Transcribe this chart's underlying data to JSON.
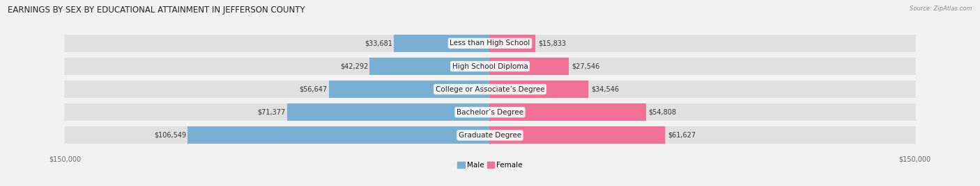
{
  "title": "EARNINGS BY SEX BY EDUCATIONAL ATTAINMENT IN JEFFERSON COUNTY",
  "source": "Source: ZipAtlas.com",
  "categories": [
    "Less than High School",
    "High School Diploma",
    "College or Associate’s Degree",
    "Bachelor’s Degree",
    "Graduate Degree"
  ],
  "male_values": [
    33681,
    42292,
    56647,
    71377,
    106549
  ],
  "female_values": [
    15833,
    27546,
    34546,
    54808,
    61627
  ],
  "male_color": "#7aafd4",
  "female_color": "#f07096",
  "max_value": 150000,
  "bg_color": "#f2f2f2",
  "bar_bg_color": "#e0e0e0",
  "title_fontsize": 8.5,
  "label_fontsize": 7.5,
  "value_fontsize": 7.0,
  "tick_fontsize": 7.0
}
